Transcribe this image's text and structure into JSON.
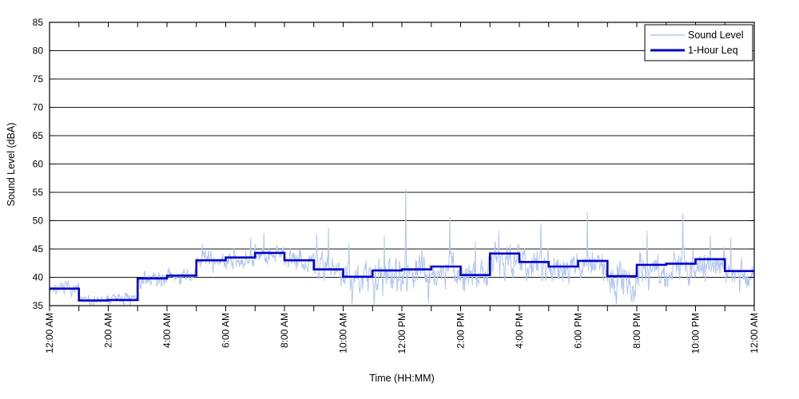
{
  "figure": {
    "background": "#ffffff",
    "border_color": "#000000"
  },
  "chart_data": {
    "type": "line",
    "title": "",
    "xlabel": "Time (HH:MM)",
    "ylabel": "Sound Level (dBA)",
    "ylim": [
      35,
      85
    ],
    "xlim_hours": [
      0,
      24
    ],
    "grid": "horizontal-solid",
    "y_ticks": [
      35,
      40,
      45,
      50,
      55,
      60,
      65,
      70,
      75,
      80,
      85
    ],
    "x_tick_hours": [
      0,
      2,
      4,
      6,
      8,
      10,
      12,
      14,
      16,
      18,
      20,
      22,
      24
    ],
    "x_tick_labels": [
      "12:00 AM",
      "2:00 AM",
      "4:00 AM",
      "6:00 AM",
      "8:00 AM",
      "10:00 AM",
      "12:00 PM",
      "2:00 PM",
      "4:00 PM",
      "6:00 PM",
      "8:00 PM",
      "10:00 PM",
      "12:00 AM"
    ],
    "x_minor_tick_every_hours": 1,
    "legend": {
      "position": "top-right",
      "entries": [
        {
          "label": "Sound Level",
          "color": "#b3c6ef",
          "line_width": 1.5
        },
        {
          "label": "1-Hour Leq",
          "color": "#0000cc",
          "line_width": 3
        }
      ]
    },
    "series": [
      {
        "name": "1-Hour Leq",
        "type": "step",
        "color": "#0000cc",
        "hour_start": [
          0,
          1,
          2,
          3,
          4,
          5,
          6,
          7,
          8,
          9,
          10,
          11,
          12,
          13,
          14,
          15,
          16,
          17,
          18,
          19,
          20,
          21,
          22,
          23
        ],
        "values": [
          38.0,
          35.9,
          36.0,
          39.8,
          40.3,
          43.0,
          43.5,
          44.3,
          43.0,
          41.4,
          40.1,
          41.2,
          41.4,
          41.9,
          40.4,
          44.2,
          42.7,
          41.9,
          42.9,
          40.2,
          42.2,
          42.4,
          43.2,
          41.1
        ]
      },
      {
        "name": "Sound Level",
        "type": "noisy-trace",
        "color": "#b3c6ef",
        "samples_per_hour": 60,
        "seed": 7,
        "hourly_band_low": [
          36.3,
          34.9,
          34.9,
          37.6,
          38.2,
          40.3,
          40.8,
          41.8,
          40.2,
          38.0,
          36.0,
          35.6,
          36.5,
          36.8,
          36.2,
          39.0,
          38.5,
          37.8,
          38.2,
          35.4,
          36.8,
          37.2,
          38.5,
          37.5
        ],
        "hourly_band_high": [
          39.8,
          37.2,
          37.6,
          41.6,
          42.2,
          45.4,
          46.0,
          46.5,
          46.0,
          45.5,
          44.0,
          45.0,
          45.0,
          45.5,
          44.5,
          47.0,
          46.0,
          45.8,
          46.2,
          44.0,
          45.8,
          46.0,
          46.3,
          44.2
        ],
        "spikes": [
          [
            5.2,
            45.9
          ],
          [
            6.85,
            47.0
          ],
          [
            7.3,
            47.8
          ],
          [
            9.1,
            47.6
          ],
          [
            9.5,
            48.7
          ],
          [
            10.2,
            46.0
          ],
          [
            11.4,
            47.4
          ],
          [
            12.13,
            55.6
          ],
          [
            13.63,
            50.6
          ],
          [
            14.5,
            46.3
          ],
          [
            15.3,
            48.2
          ],
          [
            16.73,
            49.5
          ],
          [
            18.32,
            51.5
          ],
          [
            20.35,
            48.2
          ],
          [
            21.57,
            51.3
          ],
          [
            22.5,
            47.3
          ],
          [
            23.2,
            47.0
          ]
        ],
        "dips": [
          [
            1.5,
            34.9
          ],
          [
            2.75,
            35.0
          ],
          [
            10.3,
            35.2
          ],
          [
            11.05,
            35.2
          ],
          [
            12.9,
            35.6
          ],
          [
            19.3,
            35.3
          ],
          [
            19.9,
            35.6
          ],
          [
            23.5,
            37.3
          ]
        ]
      }
    ]
  }
}
